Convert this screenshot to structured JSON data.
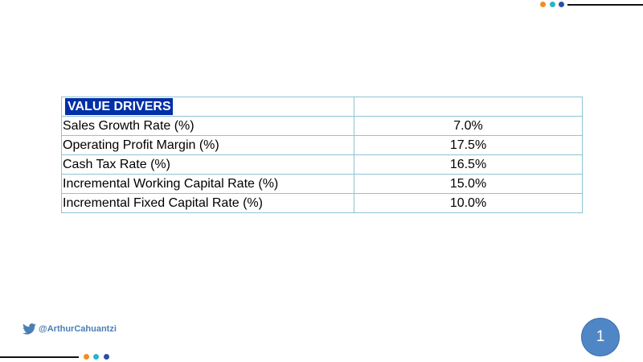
{
  "colors": {
    "dot_orange": "#f28c28",
    "dot_teal": "#28b5c4",
    "dot_blue": "#2b4fa8",
    "header_bg": "#002fa7",
    "border": "#8fc3d3",
    "page_badge": "#4f86c6"
  },
  "table": {
    "header": "VALUE DRIVERS",
    "rows": [
      {
        "label": "Sales Growth Rate (%)",
        "value": "7.0%"
      },
      {
        "label": "Operating Profit Margin (%)",
        "value": "17.5%"
      },
      {
        "label": "Cash Tax Rate (%)",
        "value": "16.5%"
      },
      {
        "label": "Incremental Working Capital Rate (%)",
        "value": "15.0%"
      },
      {
        "label": "Incremental Fixed Capital Rate (%)",
        "value": "10.0%"
      }
    ]
  },
  "footer": {
    "twitter_icon": "twitter-bird-icon",
    "handle": "@ArthurCahuantzi",
    "page_number": "1"
  }
}
